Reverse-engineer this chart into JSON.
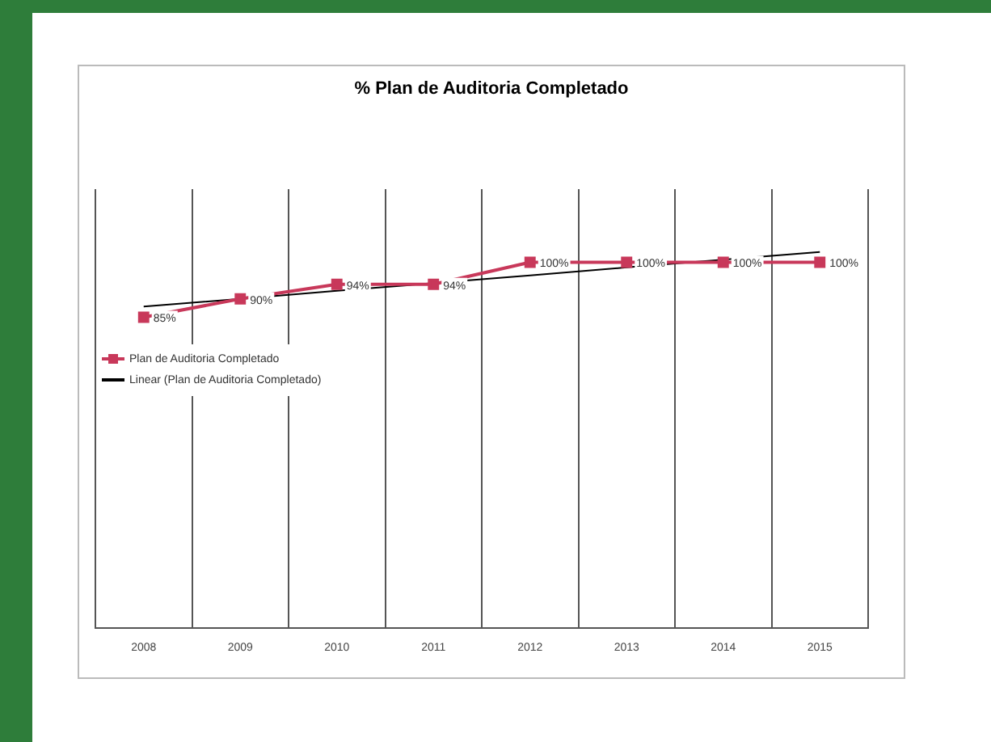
{
  "chart_data": {
    "type": "line",
    "title": "% Plan de Auditoria Completado",
    "categories": [
      "2008",
      "2009",
      "2010",
      "2011",
      "2012",
      "2013",
      "2014",
      "2015"
    ],
    "series": [
      {
        "name": "Plan de Auditoria Completado",
        "color": "#c8385a",
        "values": [
          85,
          90,
          94,
          94,
          100,
          100,
          100,
          100
        ],
        "value_labels": [
          "85%",
          "90%",
          "94%",
          "94%",
          "100%",
          "100%",
          "100%",
          "100%"
        ],
        "marker": "square"
      },
      {
        "name": "Linear (Plan de Auditoria Completado)",
        "color": "#000000",
        "values": [
          87.9,
          90.0,
          92.2,
          94.3,
          96.4,
          98.6,
          100.7,
          102.8
        ],
        "marker": "none"
      }
    ],
    "ylim": [
      0,
      120
    ],
    "tick_labels": "x",
    "grid": "x",
    "legend": "left"
  }
}
